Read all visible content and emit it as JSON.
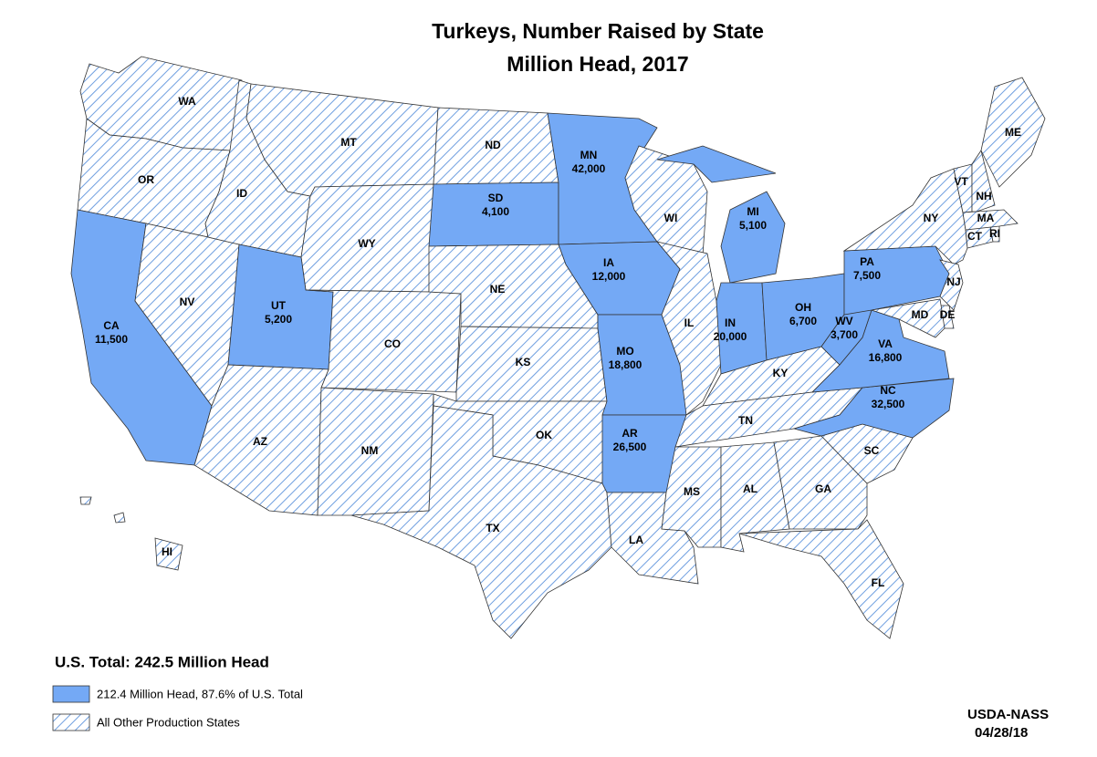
{
  "map": {
    "title": "Turkeys, Number Raised by State",
    "subtitle": "Million Head, 2017",
    "states": [
      {
        "abbr": "WA",
        "fill": "hatch"
      },
      {
        "abbr": "OR",
        "fill": "hatch"
      },
      {
        "abbr": "CA",
        "value": "11,500",
        "fill": "#74a9f5"
      },
      {
        "abbr": "NV",
        "fill": "hatch"
      },
      {
        "abbr": "ID",
        "fill": "hatch"
      },
      {
        "abbr": "MT",
        "fill": "hatch"
      },
      {
        "abbr": "WY",
        "fill": "hatch"
      },
      {
        "abbr": "UT",
        "value": "5,200",
        "fill": "#74a9f5"
      },
      {
        "abbr": "CO",
        "fill": "hatch"
      },
      {
        "abbr": "AZ",
        "fill": "hatch"
      },
      {
        "abbr": "NM",
        "fill": "hatch"
      },
      {
        "abbr": "ND",
        "fill": "hatch"
      },
      {
        "abbr": "SD",
        "value": "4,100",
        "fill": "#74a9f5"
      },
      {
        "abbr": "NE",
        "fill": "hatch"
      },
      {
        "abbr": "KS",
        "fill": "hatch"
      },
      {
        "abbr": "OK",
        "fill": "hatch"
      },
      {
        "abbr": "TX",
        "fill": "hatch"
      },
      {
        "abbr": "MN",
        "value": "42,000",
        "fill": "#74a9f5"
      },
      {
        "abbr": "IA",
        "value": "12,000",
        "fill": "#74a9f5"
      },
      {
        "abbr": "MO",
        "value": "18,800",
        "fill": "#74a9f5"
      },
      {
        "abbr": "AR",
        "value": "26,500",
        "fill": "#74a9f5"
      },
      {
        "abbr": "LA",
        "fill": "hatch"
      },
      {
        "abbr": "WI",
        "fill": "hatch"
      },
      {
        "abbr": "IL",
        "fill": "hatch"
      },
      {
        "abbr": "MI",
        "value": "5,100",
        "fill": "#74a9f5"
      },
      {
        "abbr": "IN",
        "value": "20,000",
        "fill": "#74a9f5"
      },
      {
        "abbr": "OH",
        "value": "6,700",
        "fill": "#74a9f5"
      },
      {
        "abbr": "KY",
        "fill": "hatch"
      },
      {
        "abbr": "TN",
        "fill": "hatch"
      },
      {
        "abbr": "MS",
        "fill": "hatch"
      },
      {
        "abbr": "AL",
        "fill": "hatch"
      },
      {
        "abbr": "GA",
        "fill": "hatch"
      },
      {
        "abbr": "FL",
        "fill": "hatch"
      },
      {
        "abbr": "SC",
        "fill": "hatch"
      },
      {
        "abbr": "NC",
        "value": "32,500",
        "fill": "#74a9f5"
      },
      {
        "abbr": "VA",
        "value": "16,800",
        "fill": "#74a9f5"
      },
      {
        "abbr": "WV",
        "value": "3,700",
        "fill": "#74a9f5"
      },
      {
        "abbr": "PA",
        "value": "7,500",
        "fill": "#74a9f5"
      },
      {
        "abbr": "NY",
        "fill": "hatch"
      },
      {
        "abbr": "NJ",
        "fill": "hatch"
      },
      {
        "abbr": "DE",
        "fill": "hatch"
      },
      {
        "abbr": "MD",
        "fill": "hatch"
      },
      {
        "abbr": "CT",
        "fill": "hatch"
      },
      {
        "abbr": "RI",
        "fill": "hatch"
      },
      {
        "abbr": "MA",
        "fill": "hatch"
      },
      {
        "abbr": "VT",
        "fill": "hatch"
      },
      {
        "abbr": "NH",
        "fill": "hatch"
      },
      {
        "abbr": "ME",
        "fill": "hatch"
      },
      {
        "abbr": "HI",
        "fill": "hatch"
      }
    ],
    "total": "U.S. Total: 242.5 Million Head",
    "legend": [
      {
        "label": "212.4 Million Head, 87.6% of U.S. Total",
        "fill": "#74a9f5"
      },
      {
        "label": "All Other Production States",
        "fill": "hatch"
      }
    ],
    "source": "USDA-NASS",
    "date": "04/28/18"
  }
}
